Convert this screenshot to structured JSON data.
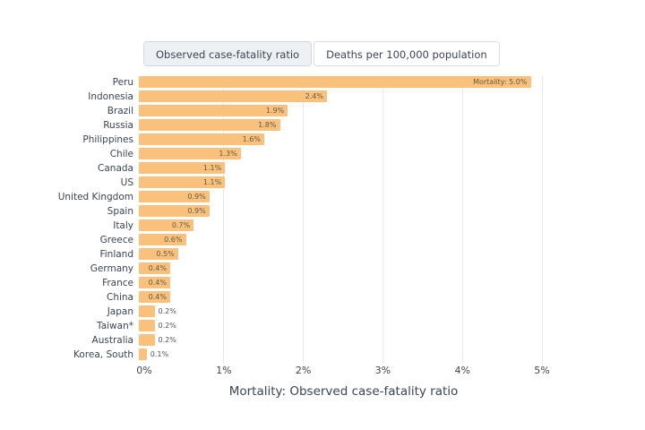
{
  "tabs": [
    {
      "label": "Observed case-fatality ratio",
      "selected": true
    },
    {
      "label": "Deaths per 100,000 population",
      "selected": false
    }
  ],
  "chart_data": {
    "type": "bar",
    "orientation": "horizontal",
    "title": "",
    "xlabel": "Mortality: Observed case-fatality ratio",
    "ylabel": "",
    "xlim": [
      0,
      5
    ],
    "x_ticks": [
      "0%",
      "1%",
      "2%",
      "3%",
      "4%",
      "5%"
    ],
    "grid": "vertical",
    "bar_color": "#f9c17b",
    "categories": [
      "Peru",
      "Indonesia",
      "Brazil",
      "Russia",
      "Philippines",
      "Chile",
      "Canada",
      "US",
      "United Kingdom",
      "Spain",
      "Italy",
      "Greece",
      "Finland",
      "Germany",
      "France",
      "China",
      "Japan",
      "Taiwan*",
      "Australia",
      "Korea, South"
    ],
    "values": [
      5.0,
      2.4,
      1.9,
      1.8,
      1.6,
      1.3,
      1.1,
      1.1,
      0.9,
      0.9,
      0.7,
      0.6,
      0.5,
      0.4,
      0.4,
      0.4,
      0.2,
      0.2,
      0.2,
      0.1
    ],
    "labels": [
      "Mortality: 5.0%",
      "2.4%",
      "1.9%",
      "1.8%",
      "1.6%",
      "1.3%",
      "1.1%",
      "1.1%",
      "0.9%",
      "0.9%",
      "0.7%",
      "0.6%",
      "0.5%",
      "0.4%",
      "0.4%",
      "0.4%",
      "0.2%",
      "0.2%",
      "0.2%",
      "0.1%"
    ]
  }
}
